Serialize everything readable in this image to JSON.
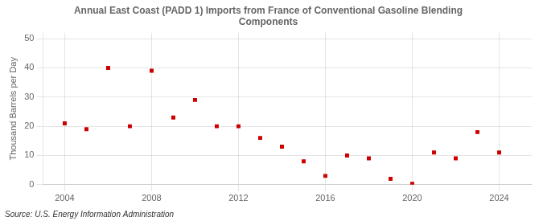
{
  "chart_data": {
    "type": "scatter",
    "title": "Annual East Coast (PADD 1) Imports from France of Conventional Gasoline Blending\nComponents",
    "ylabel": "Thousand Barrels per Day",
    "annotations": [
      "Source: U.S. Energy Information Administration"
    ],
    "x": [
      2004,
      2005,
      2006,
      2007,
      2008,
      2009,
      2010,
      2011,
      2012,
      2013,
      2014,
      2015,
      2016,
      2017,
      2018,
      2019,
      2020,
      2021,
      2022,
      2023,
      2024
    ],
    "values": [
      21,
      19,
      40,
      20,
      39,
      23,
      29,
      20,
      20,
      16,
      13,
      8,
      3,
      10,
      9,
      2,
      0.3,
      11,
      9,
      18,
      11
    ],
    "color": "#cc0000",
    "marker": "square",
    "xlim": [
      2003,
      2025.5
    ],
    "xticks": [
      2004,
      2008,
      2012,
      2016,
      2020,
      2024
    ],
    "ylim": [
      0,
      52
    ],
    "yticks": [
      0,
      10,
      20,
      30,
      40,
      50
    ],
    "grid": true
  }
}
